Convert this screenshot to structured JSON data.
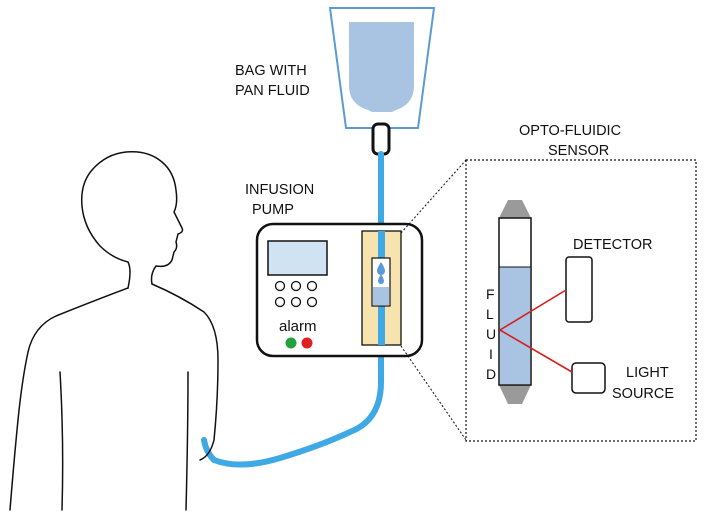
{
  "labels": {
    "bag_line1": "BAG WITH",
    "bag_line2": "PAN FLUID",
    "sensor_line1": "OPTO-FLUIDIC",
    "sensor_line2": "SENSOR",
    "pump_line1": "INFUSION",
    "pump_line2": "PUMP",
    "alarm": "alarm",
    "detector": "DETECTOR",
    "light_line1": "LIGHT",
    "light_line2": "SOURCE",
    "fluid_letters": [
      "F",
      "L",
      "U",
      "I",
      "D"
    ]
  },
  "colors": {
    "tube": "#3fa9e6",
    "fluid": "#a9c4e3",
    "pump_slot": "#f6e3ad",
    "screen": "#cfe3f3",
    "led_green": "#22a23a",
    "led_red": "#e02020",
    "light_beam": "#d81e1e",
    "connector": "#9a9a9a"
  },
  "icons": {
    "bag": "iv-bag-icon",
    "person": "patient-silhouette",
    "pump": "infusion-pump-device",
    "drop": "water-drop-icon"
  }
}
